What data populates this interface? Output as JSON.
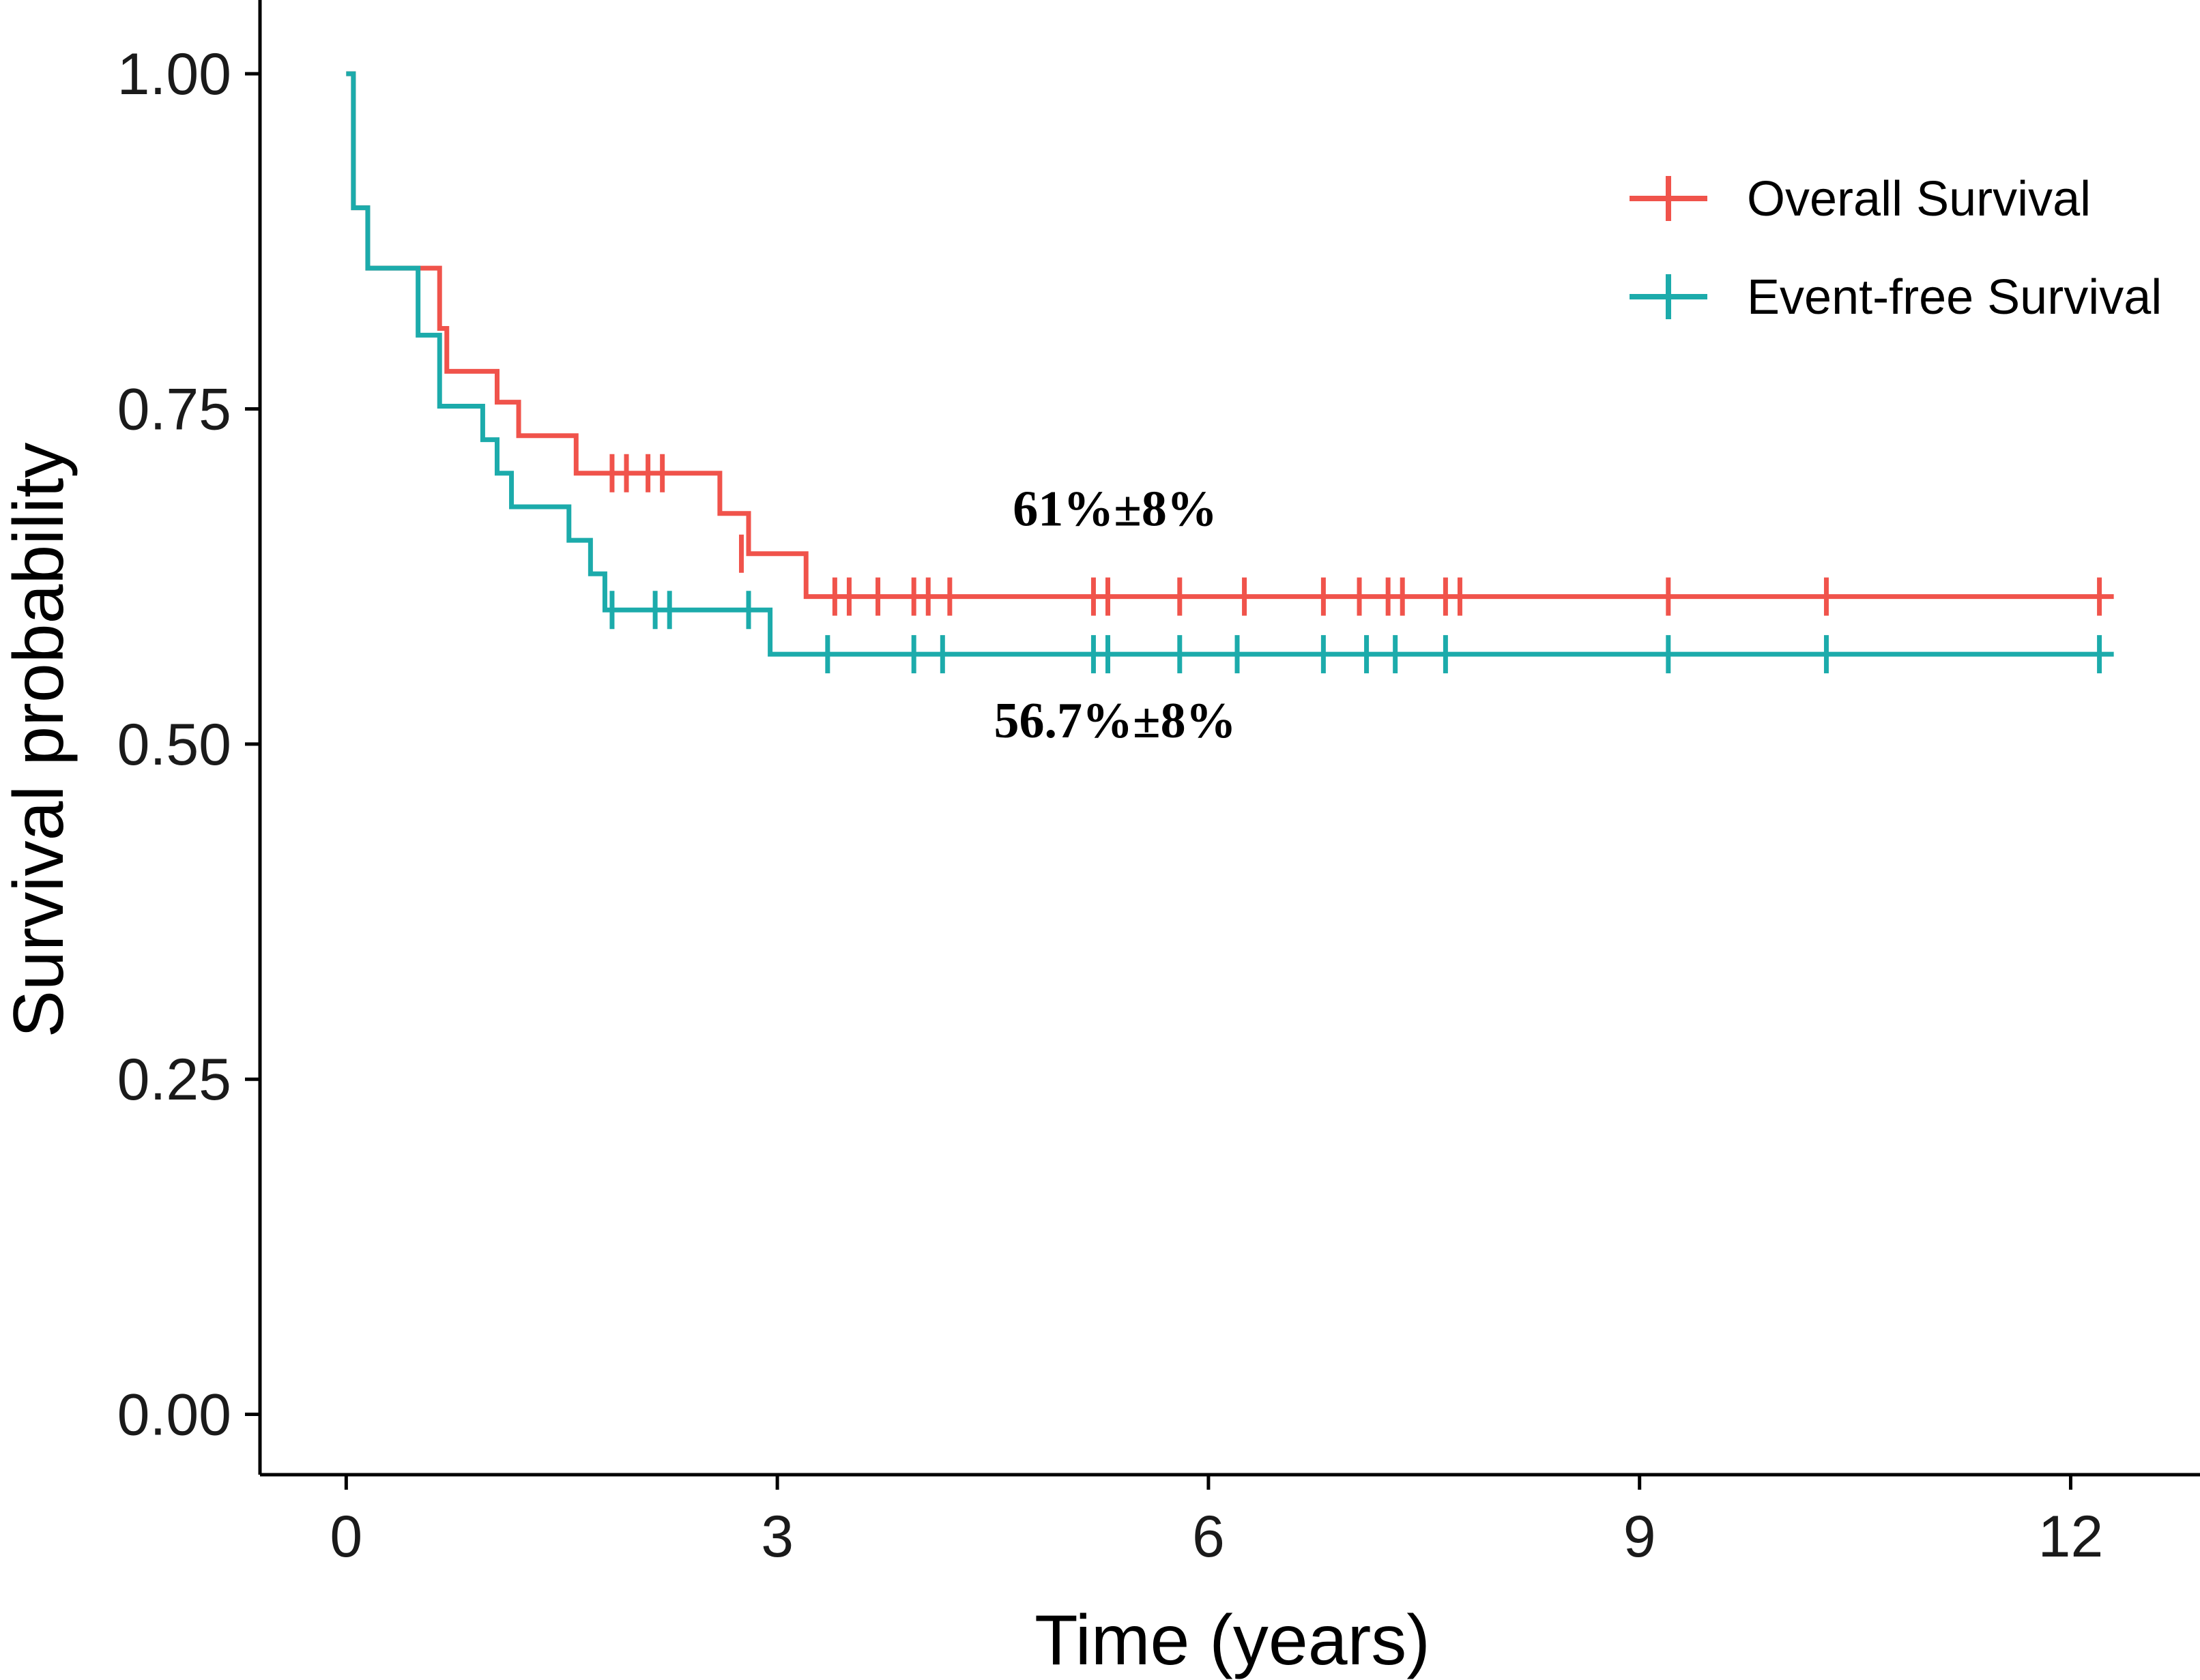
{
  "chart_data": {
    "type": "line",
    "title": "",
    "xlabel": "Time (years)",
    "ylabel": "Survival probability",
    "xlim": [
      -0.6,
      12.9
    ],
    "ylim": [
      -0.045,
      1.055
    ],
    "xticks": [
      0,
      3,
      6,
      9,
      12
    ],
    "xtick_labels": [
      "0",
      "3",
      "6",
      "9",
      "12"
    ],
    "yticks": [
      0,
      0.25,
      0.5,
      0.75,
      1.0
    ],
    "ytick_labels": [
      "0.00",
      "0.25",
      "0.50",
      "0.75",
      "1.00"
    ],
    "grid": false,
    "legend_position": "top-right",
    "series": [
      {
        "name": "Overall Survival",
        "color": "#F0534B",
        "steps": [
          [
            0,
            1.0
          ],
          [
            0.05,
            0.9
          ],
          [
            0.15,
            0.855
          ],
          [
            0.65,
            0.81
          ],
          [
            0.7,
            0.778
          ],
          [
            1.05,
            0.755
          ],
          [
            1.2,
            0.73
          ],
          [
            1.6,
            0.702
          ],
          [
            2.6,
            0.672
          ],
          [
            2.8,
            0.642
          ],
          [
            3.2,
            0.61
          ]
        ],
        "end_x": 12.3,
        "censor": [
          [
            1.85,
            0.702
          ],
          [
            1.95,
            0.702
          ],
          [
            2.1,
            0.702
          ],
          [
            2.2,
            0.702
          ],
          [
            2.75,
            0.642
          ],
          [
            3.4,
            0.61
          ],
          [
            3.5,
            0.61
          ],
          [
            3.7,
            0.61
          ],
          [
            3.95,
            0.61
          ],
          [
            4.05,
            0.61
          ],
          [
            4.2,
            0.61
          ],
          [
            5.2,
            0.61
          ],
          [
            5.3,
            0.61
          ],
          [
            5.8,
            0.61
          ],
          [
            6.25,
            0.61
          ],
          [
            6.8,
            0.61
          ],
          [
            7.05,
            0.61
          ],
          [
            7.25,
            0.61
          ],
          [
            7.35,
            0.61
          ],
          [
            7.65,
            0.61
          ],
          [
            7.75,
            0.61
          ],
          [
            9.2,
            0.61
          ],
          [
            10.3,
            0.61
          ],
          [
            12.2,
            0.61
          ]
        ]
      },
      {
        "name": "Event-free Survival",
        "color": "#1CABAB",
        "steps": [
          [
            0,
            1.0
          ],
          [
            0.05,
            0.9
          ],
          [
            0.15,
            0.855
          ],
          [
            0.5,
            0.805
          ],
          [
            0.65,
            0.752
          ],
          [
            0.95,
            0.727
          ],
          [
            1.05,
            0.702
          ],
          [
            1.15,
            0.677
          ],
          [
            1.55,
            0.652
          ],
          [
            1.7,
            0.627
          ],
          [
            1.8,
            0.6
          ],
          [
            2.95,
            0.567
          ]
        ],
        "end_x": 12.3,
        "censor": [
          [
            1.85,
            0.6
          ],
          [
            2.15,
            0.6
          ],
          [
            2.25,
            0.6
          ],
          [
            2.8,
            0.6
          ],
          [
            3.35,
            0.567
          ],
          [
            3.95,
            0.567
          ],
          [
            4.15,
            0.567
          ],
          [
            5.2,
            0.567
          ],
          [
            5.3,
            0.567
          ],
          [
            5.8,
            0.567
          ],
          [
            6.2,
            0.567
          ],
          [
            6.8,
            0.567
          ],
          [
            7.1,
            0.567
          ],
          [
            7.3,
            0.567
          ],
          [
            7.65,
            0.567
          ],
          [
            9.2,
            0.567
          ],
          [
            10.3,
            0.567
          ],
          [
            12.2,
            0.567
          ]
        ]
      }
    ],
    "annotations": [
      {
        "text": "61%±8%",
        "x": 5.35,
        "y": 0.663
      },
      {
        "text": "56.7%±8%",
        "x": 5.35,
        "y": 0.505
      }
    ]
  }
}
